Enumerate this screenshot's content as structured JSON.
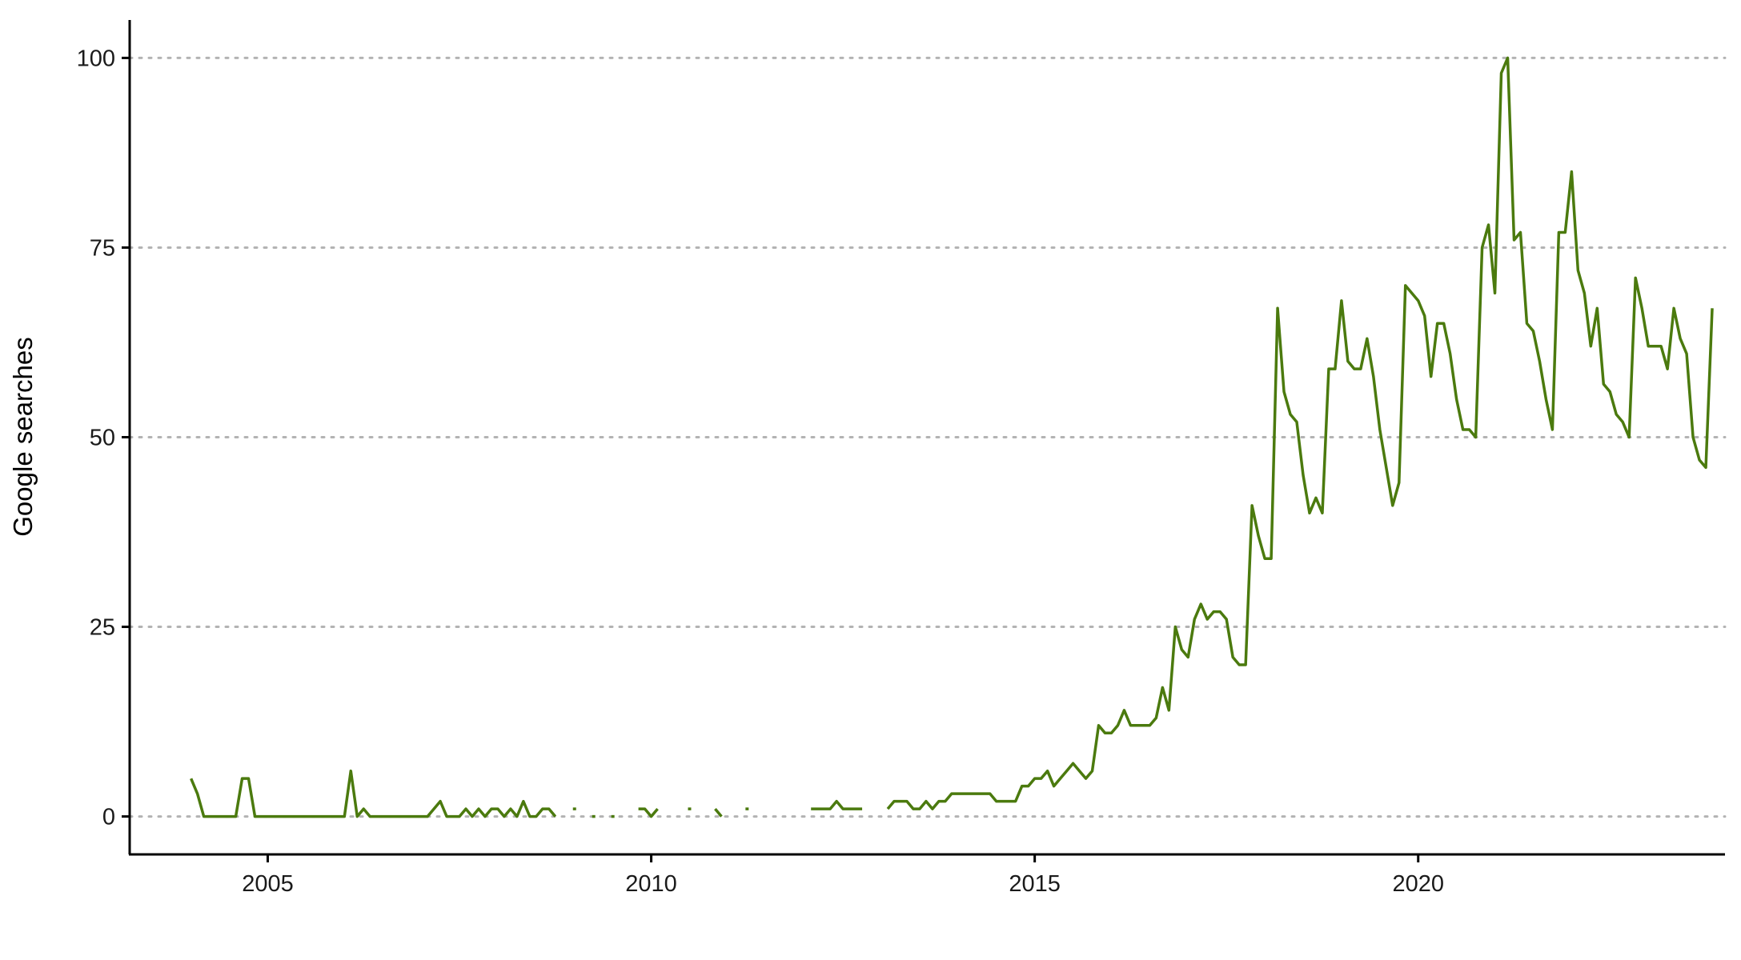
{
  "chart_data": {
    "type": "line",
    "title": "",
    "xlabel": "",
    "ylabel": "Google searches",
    "xlim": [
      2003.2,
      2024.0
    ],
    "ylim": [
      -5,
      105
    ],
    "x_ticks": [
      2005,
      2010,
      2015,
      2020
    ],
    "y_ticks": [
      0,
      25,
      50,
      75,
      100
    ],
    "grid": "horizontal dotted",
    "legend": "none",
    "line_color": "#4b7a0e",
    "series": [
      {
        "x_start": 2004.0,
        "x_step_months": 1,
        "values": [
          5,
          3,
          0,
          0,
          0,
          0,
          0,
          0,
          5,
          5,
          0,
          0,
          0,
          0,
          0,
          0,
          0,
          0,
          0,
          0,
          0,
          0,
          0,
          0,
          0,
          6,
          0,
          1,
          0,
          0,
          0,
          0,
          0,
          0,
          0,
          0,
          0,
          0,
          1,
          2,
          0,
          0,
          0,
          1,
          0,
          1,
          0,
          1,
          1,
          0,
          1,
          0,
          2,
          0,
          0,
          1,
          1,
          0,
          null,
          null,
          1,
          null,
          null,
          0,
          null,
          null,
          0,
          null,
          null,
          null,
          1,
          1,
          0,
          1,
          null,
          null,
          null,
          null,
          1,
          null,
          null,
          null,
          1,
          0,
          null,
          null,
          null,
          1,
          null,
          null,
          null,
          null,
          null,
          null,
          null,
          null,
          null,
          1,
          1,
          1,
          1,
          2,
          1,
          1,
          1,
          1,
          null,
          null,
          null,
          1,
          2,
          2,
          2,
          1,
          1,
          2,
          1,
          2,
          2,
          3,
          3,
          3,
          3,
          3,
          3,
          3,
          2,
          2,
          2,
          2,
          4,
          4,
          5,
          5,
          6,
          4,
          5,
          6,
          7,
          6,
          5,
          6,
          12,
          11,
          11,
          12,
          14,
          12,
          12,
          12,
          12,
          13,
          17,
          14,
          25,
          22,
          21,
          26,
          28,
          26,
          27,
          27,
          26,
          21,
          20,
          20,
          41,
          37,
          34,
          34,
          67,
          56,
          53,
          52,
          45,
          40,
          42,
          40,
          59,
          59,
          68,
          60,
          59,
          59,
          63,
          58,
          51,
          46,
          41,
          44,
          70,
          69,
          68,
          66,
          58,
          65,
          65,
          61,
          55,
          51,
          51,
          50,
          75,
          78,
          69,
          98,
          100,
          76,
          77,
          65,
          64,
          60,
          55,
          51,
          77,
          77,
          85,
          72,
          69,
          62,
          67,
          57,
          56,
          53,
          52,
          50,
          71,
          67,
          62,
          62,
          62,
          59,
          67,
          63,
          61,
          50,
          47,
          46,
          67
        ]
      }
    ]
  }
}
